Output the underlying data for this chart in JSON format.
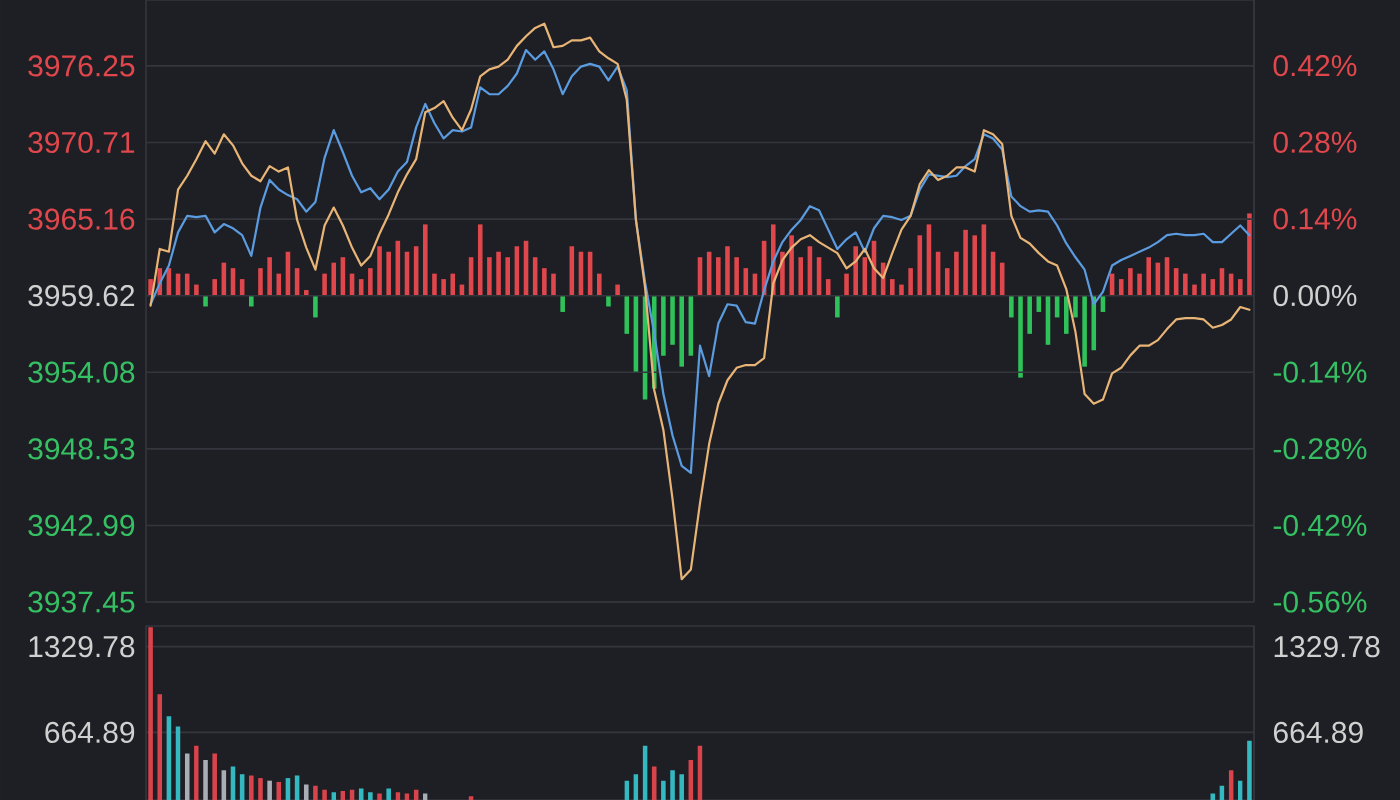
{
  "chart_data": [
    {
      "type": "line",
      "categories": [
        null,
        null,
        null,
        null,
        null,
        null,
        null,
        null,
        null,
        null,
        null,
        null,
        null,
        null,
        null,
        null,
        null,
        null,
        null,
        null,
        null,
        null,
        null,
        null,
        null,
        null,
        null,
        null,
        null,
        null,
        null,
        null,
        null,
        null,
        null,
        null,
        null,
        null,
        null,
        null,
        null,
        null,
        null,
        null,
        null,
        null,
        null,
        null,
        null,
        null,
        null,
        null,
        null,
        null,
        null,
        null,
        null,
        null,
        null,
        null,
        null,
        null,
        null,
        null,
        null,
        null,
        null,
        null,
        null,
        null,
        null,
        null,
        null,
        null,
        null,
        null,
        null,
        null,
        null,
        null,
        null,
        null,
        null,
        null,
        null,
        null,
        null,
        null,
        null,
        null,
        null,
        null,
        null,
        null,
        null,
        null,
        null,
        null,
        null,
        null,
        null,
        null,
        null,
        null,
        null,
        null,
        null,
        null,
        null,
        null,
        null,
        null,
        null,
        null,
        null,
        null,
        null,
        null,
        null,
        null,
        null
      ],
      "series": [
        {
          "type": "bar",
          "axis": "y2",
          "values": [
            0.03,
            0.05,
            0.05,
            0.04,
            0.04,
            0.02,
            -0.02,
            0.03,
            0.06,
            0.05,
            0.03,
            -0.02,
            0.05,
            0.07,
            0.04,
            0.08,
            0.05,
            0.01,
            -0.04,
            0.04,
            0.06,
            0.07,
            0.04,
            0.03,
            0.05,
            0.09,
            0.08,
            0.1,
            0.08,
            0.09,
            0.13,
            0.04,
            0.03,
            0.04,
            0.02,
            0.07,
            0.13,
            0.07,
            0.08,
            0.07,
            0.09,
            0.1,
            0.07,
            0.05,
            0.04,
            -0.03,
            0.09,
            0.08,
            0.08,
            0.04,
            -0.02,
            0.02,
            -0.07,
            -0.14,
            -0.19,
            -0.17,
            -0.11,
            -0.09,
            -0.13,
            -0.11,
            0.07,
            0.08,
            0.07,
            0.09,
            0.07,
            0.05,
            0.04,
            0.1,
            0.13,
            0.08,
            0.11,
            0.07,
            0.09,
            0.07,
            0.03,
            -0.04,
            0.04,
            0.09,
            0.07,
            0.1,
            0.06,
            0.03,
            0.02,
            0.05,
            0.11,
            0.13,
            0.08,
            0.05,
            0.08,
            0.12,
            0.11,
            0.13,
            0.08,
            0.06,
            -0.04,
            -0.15,
            -0.07,
            -0.03,
            -0.09,
            -0.04,
            -0.07,
            -0.04,
            -0.13,
            -0.1,
            -0.03,
            0.04,
            0.03,
            0.05,
            0.04,
            0.07,
            0.06,
            0.07,
            0.05,
            0.04,
            0.02,
            0.04,
            0.03,
            0.05,
            0.04,
            0.03,
            0.15
          ],
          "colors": [
            "#e0474c",
            "#e0474c",
            "#e0474c",
            "#e0474c",
            "#e0474c",
            "#e0474c",
            "#2fc25b",
            "#e0474c",
            "#e0474c",
            "#e0474c",
            "#e0474c",
            "#2fc25b",
            "#e0474c",
            "#e0474c",
            "#e0474c",
            "#e0474c",
            "#e0474c",
            "#e0474c",
            "#2fc25b",
            "#e0474c",
            "#e0474c",
            "#e0474c",
            "#e0474c",
            "#e0474c",
            "#e0474c",
            "#e0474c",
            "#e0474c",
            "#e0474c",
            "#e0474c",
            "#e0474c",
            "#e0474c",
            "#e0474c",
            "#e0474c",
            "#e0474c",
            "#e0474c",
            "#e0474c",
            "#e0474c",
            "#e0474c",
            "#e0474c",
            "#e0474c",
            "#e0474c",
            "#e0474c",
            "#e0474c",
            "#e0474c",
            "#e0474c",
            "#2fc25b",
            "#e0474c",
            "#e0474c",
            "#e0474c",
            "#e0474c",
            "#2fc25b",
            "#e0474c",
            "#2fc25b",
            "#2fc25b",
            "#2fc25b",
            "#2fc25b",
            "#2fc25b",
            "#2fc25b",
            "#2fc25b",
            "#2fc25b",
            "#e0474c",
            "#e0474c",
            "#e0474c",
            "#e0474c",
            "#e0474c",
            "#e0474c",
            "#e0474c",
            "#e0474c",
            "#e0474c",
            "#e0474c",
            "#e0474c",
            "#e0474c",
            "#e0474c",
            "#e0474c",
            "#e0474c",
            "#2fc25b",
            "#e0474c",
            "#e0474c",
            "#e0474c",
            "#e0474c",
            "#e0474c",
            "#e0474c",
            "#e0474c",
            "#e0474c",
            "#e0474c",
            "#e0474c",
            "#e0474c",
            "#e0474c",
            "#e0474c",
            "#e0474c",
            "#e0474c",
            "#e0474c",
            "#e0474c",
            "#e0474c",
            "#2fc25b",
            "#2fc25b",
            "#2fc25b",
            "#2fc25b",
            "#2fc25b",
            "#2fc25b",
            "#2fc25b",
            "#2fc25b",
            "#2fc25b",
            "#2fc25b",
            "#2fc25b",
            "#e0474c",
            "#e0474c",
            "#e0474c",
            "#e0474c",
            "#e0474c",
            "#e0474c",
            "#e0474c",
            "#e0474c",
            "#e0474c",
            "#e0474c",
            "#e0474c",
            "#e0474c",
            "#e0474c",
            "#e0474c",
            "#e0474c",
            "#e0474c"
          ]
        },
        {
          "color": "#5b9be0",
          "values": [
            3959.0,
            3960.5,
            3961.8,
            3964.2,
            3965.4,
            3965.3,
            3965.4,
            3964.2,
            3964.8,
            3964.5,
            3964.0,
            3962.5,
            3966.0,
            3968.0,
            3967.3,
            3966.9,
            3966.6,
            3965.7,
            3966.4,
            3969.6,
            3971.6,
            3970.0,
            3968.3,
            3967.1,
            3967.4,
            3966.6,
            3967.3,
            3968.6,
            3969.3,
            3971.8,
            3973.5,
            3972.1,
            3971.0,
            3971.6,
            3971.5,
            3971.8,
            3974.7,
            3974.2,
            3974.2,
            3974.8,
            3975.7,
            3977.4,
            3976.7,
            3977.3,
            3976.0,
            3974.2,
            3975.5,
            3976.2,
            3976.4,
            3976.2,
            3975.2,
            3976.2,
            3974.5,
            3965.1,
            3960.6,
            3956.9,
            3952.5,
            3949.5,
            3947.3,
            3946.8,
            3956.0,
            3953.8,
            3957.6,
            3959.0,
            3958.9,
            3957.7,
            3957.6,
            3960.0,
            3962.1,
            3963.5,
            3964.4,
            3965.1,
            3966.1,
            3965.8,
            3964.4,
            3963.0,
            3963.7,
            3964.2,
            3962.8,
            3964.5,
            3965.4,
            3965.3,
            3965.1,
            3965.4,
            3967.3,
            3968.4,
            3968.3,
            3968.2,
            3968.3,
            3969.0,
            3969.5,
            3971.3,
            3971.0,
            3970.2,
            3966.8,
            3966.1,
            3965.7,
            3965.8,
            3965.7,
            3964.7,
            3963.4,
            3962.4,
            3961.5,
            3959.0,
            3959.9,
            3961.8,
            3962.2,
            3962.5,
            3962.8,
            3963.1,
            3963.5,
            3964.0,
            3964.1,
            3964.0,
            3964.0,
            3964.1,
            3963.5,
            3963.5,
            3964.1,
            3964.7,
            3964.0
          ]
        },
        {
          "color": "#e8b577",
          "values": [
            3958.9,
            3963.0,
            3962.8,
            3967.3,
            3968.3,
            3969.5,
            3970.8,
            3969.9,
            3971.3,
            3970.5,
            3969.2,
            3968.3,
            3967.9,
            3969.0,
            3968.6,
            3968.9,
            3965.1,
            3963.1,
            3961.5,
            3964.7,
            3966.0,
            3964.7,
            3963.1,
            3961.8,
            3962.5,
            3964.1,
            3965.5,
            3967.1,
            3968.4,
            3969.5,
            3972.9,
            3973.2,
            3973.7,
            3972.5,
            3971.6,
            3973.1,
            3975.5,
            3976.0,
            3976.2,
            3976.7,
            3977.7,
            3978.4,
            3979.0,
            3979.3,
            3977.6,
            3977.7,
            3978.1,
            3978.1,
            3978.3,
            3977.3,
            3976.8,
            3976.4,
            3973.8,
            3965.1,
            3960.2,
            3952.8,
            3949.9,
            3944.9,
            3939.1,
            3939.8,
            3944.6,
            3948.9,
            3951.8,
            3953.5,
            3954.4,
            3954.6,
            3954.6,
            3955.1,
            3960.5,
            3962.2,
            3963.1,
            3963.7,
            3964.0,
            3963.5,
            3963.1,
            3962.7,
            3961.6,
            3962.1,
            3963.0,
            3961.6,
            3960.9,
            3962.7,
            3964.4,
            3965.4,
            3967.7,
            3968.7,
            3968.0,
            3968.3,
            3968.9,
            3968.9,
            3968.6,
            3971.6,
            3971.3,
            3970.6,
            3965.4,
            3963.8,
            3963.4,
            3962.7,
            3962.1,
            3961.8,
            3960.1,
            3957.0,
            3952.5,
            3951.8,
            3952.1,
            3954.0,
            3954.4,
            3955.3,
            3956.0,
            3956.0,
            3956.4,
            3957.2,
            3957.9,
            3958.0,
            3958.0,
            3957.9,
            3957.3,
            3957.5,
            3957.9,
            3958.8,
            3958.6
          ]
        }
      ],
      "ylim": [
        3937.45,
        3981.02
      ],
      "yticks": [
        3937.45,
        3942.99,
        3948.53,
        3954.08,
        3959.62,
        3965.16,
        3970.71,
        3976.25
      ],
      "y2lim": [
        -0.56,
        0.54
      ],
      "y2ticks": [
        {
          "value": -0.56,
          "label": "-0.56%"
        },
        {
          "value": -0.42,
          "label": "-0.42%"
        },
        {
          "value": -0.28,
          "label": "-0.28%"
        },
        {
          "value": -0.14,
          "label": "-0.14%"
        },
        {
          "value": 0,
          "label": "0.00%"
        },
        {
          "value": 0.14,
          "label": "0.14%"
        },
        {
          "value": 0.28,
          "label": "0.28%"
        },
        {
          "value": 0.42,
          "label": "0.42%"
        }
      ],
      "grid": "y"
    },
    {
      "type": "bar",
      "categories": [
        null,
        null,
        null,
        null,
        null,
        null,
        null,
        null,
        null,
        null,
        null,
        null,
        null,
        null,
        null,
        null,
        null,
        null,
        null,
        null,
        null,
        null,
        null,
        null,
        null,
        null,
        null,
        null,
        null,
        null,
        null,
        null,
        null,
        null,
        null,
        null,
        null,
        null,
        null,
        null,
        null,
        null,
        null,
        null,
        null,
        null,
        null,
        null,
        null,
        null,
        null,
        null,
        null,
        null,
        null,
        null,
        null,
        null,
        null,
        null,
        null,
        null,
        null,
        null,
        null,
        null,
        null,
        null,
        null,
        null,
        null,
        null,
        null,
        null,
        null,
        null,
        null,
        null,
        null,
        null,
        null,
        null,
        null,
        null,
        null,
        null,
        null,
        null,
        null,
        null,
        null,
        null,
        null,
        null,
        null,
        null,
        null,
        null,
        null,
        null,
        null,
        null,
        null,
        null,
        null,
        null,
        null,
        null,
        null,
        null,
        null,
        null,
        null,
        null,
        null,
        null,
        null,
        null,
        null,
        null,
        null
      ],
      "values": [
        1480,
        960,
        790,
        710,
        500,
        560,
        450,
        500,
        370,
        400,
        340,
        330,
        310,
        290,
        280,
        310,
        330,
        260,
        250,
        220,
        200,
        210,
        220,
        230,
        200,
        190,
        230,
        200,
        190,
        220,
        190,
        null,
        null,
        null,
        null,
        170,
        null,
        null,
        null,
        null,
        null,
        null,
        null,
        null,
        null,
        null,
        null,
        null,
        null,
        null,
        null,
        null,
        290,
        340,
        560,
        400,
        290,
        370,
        340,
        450,
        560,
        null,
        null,
        null,
        null,
        null,
        null,
        null,
        null,
        null,
        null,
        null,
        null,
        null,
        null,
        null,
        null,
        null,
        null,
        null,
        null,
        null,
        null,
        null,
        null,
        null,
        null,
        null,
        null,
        null,
        null,
        null,
        null,
        null,
        null,
        null,
        null,
        null,
        null,
        null,
        null,
        null,
        null,
        null,
        null,
        null,
        null,
        null,
        null,
        null,
        null,
        null,
        null,
        null,
        null,
        null,
        190,
        250,
        370,
        290,
        600
      ],
      "colors": [
        "#d9434b",
        "#d9434b",
        "#35b9c0",
        "#35b9c0",
        "#a9adb5",
        "#d9434b",
        "#a9adb5",
        "#d9434b",
        "#a9adb5",
        "#35b9c0",
        "#35b9c0",
        "#d9434b",
        "#d9434b",
        "#a9adb5",
        "#d9434b",
        "#35b9c0",
        "#35b9c0",
        "#a9adb5",
        "#d9434b",
        "#d9434b",
        "#35b9c0",
        "#d9434b",
        "#d9434b",
        "#35b9c0",
        "#35b9c0",
        "#d9434b",
        "#35b9c0",
        "#d9434b",
        "#d9434b",
        "#d9434b",
        "#a9adb5",
        null,
        null,
        null,
        null,
        "#d9434b",
        null,
        null,
        null,
        null,
        null,
        null,
        null,
        null,
        null,
        null,
        null,
        null,
        null,
        null,
        null,
        null,
        "#35b9c0",
        "#35b9c0",
        "#35b9c0",
        "#d9434b",
        "#35b9c0",
        "#35b9c0",
        "#35b9c0",
        "#d9434b",
        "#d9434b",
        null,
        null,
        null,
        null,
        null,
        null,
        null,
        null,
        null,
        null,
        null,
        null,
        null,
        null,
        null,
        null,
        null,
        null,
        null,
        null,
        null,
        null,
        null,
        null,
        null,
        null,
        null,
        null,
        null,
        null,
        null,
        null,
        null,
        null,
        null,
        null,
        null,
        null,
        null,
        null,
        null,
        null,
        null,
        null,
        null,
        null,
        null,
        null,
        null,
        null,
        null,
        null,
        null,
        null,
        null,
        "#35b9c0",
        "#35b9c0",
        "#d9434b",
        "#35b9c0",
        "#35b9c0"
      ],
      "ylim": [
        140,
        1490
      ],
      "yticks": [
        664.89,
        1329.78
      ],
      "y2lim": [
        140,
        1490
      ],
      "y2ticks": [
        664.89,
        1329.78
      ],
      "grid": "y"
    }
  ]
}
